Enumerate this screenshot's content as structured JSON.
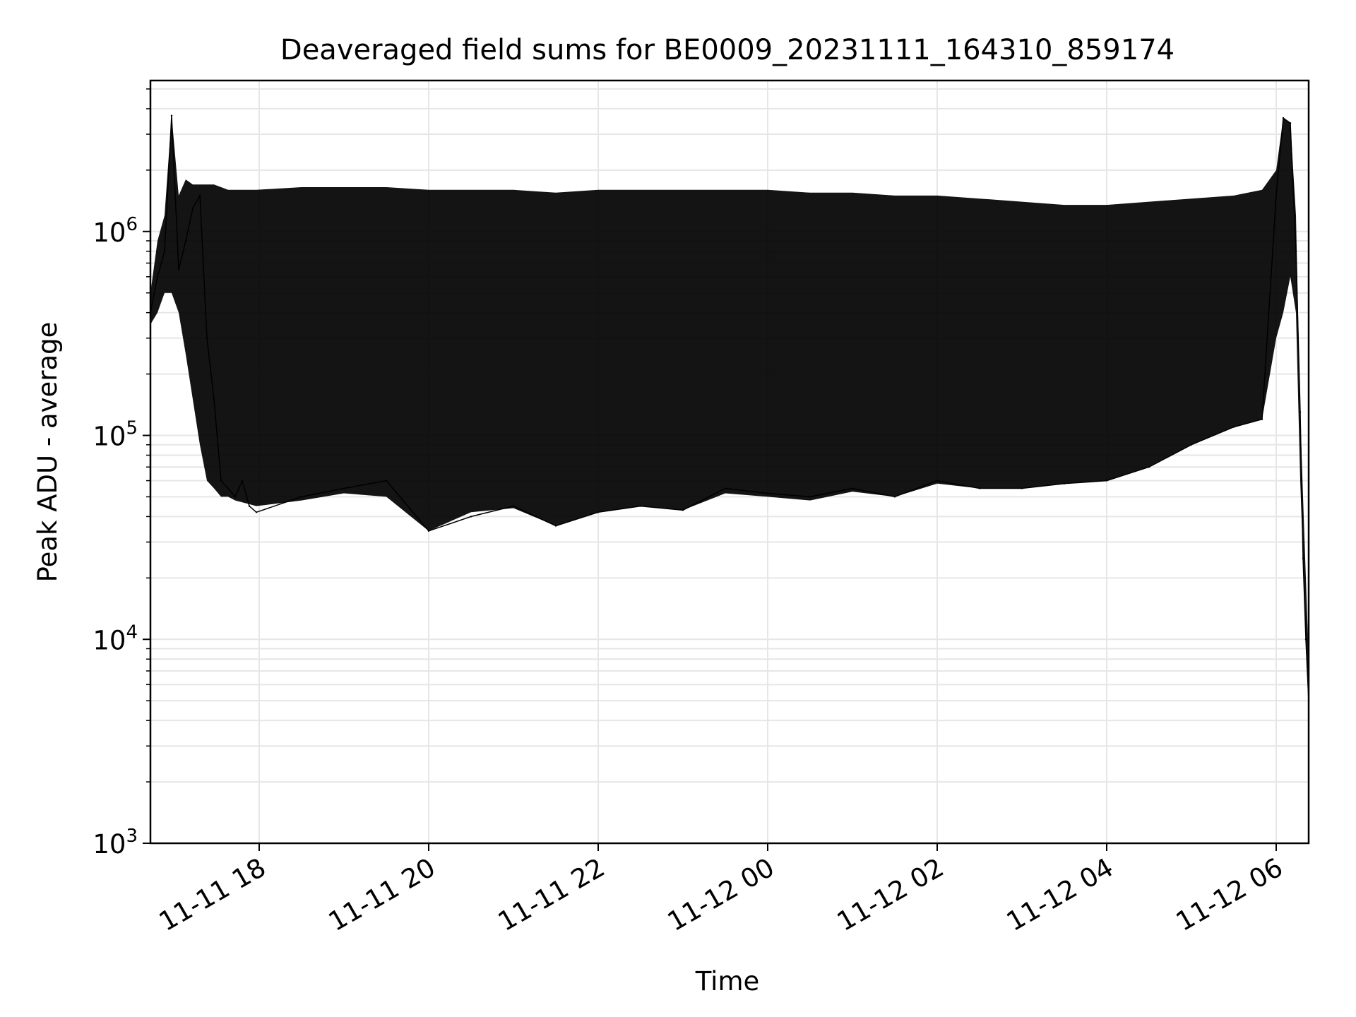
{
  "chart_data": {
    "type": "line",
    "title": "Deaveraged field sums for BE0009_20231111_164310_859174",
    "xlabel": "Time",
    "ylabel": "Peak ADU - average",
    "yscale": "log",
    "ylim": [
      1000,
      5500000
    ],
    "xlim": [
      "2023-11-11 16:43",
      "2023-11-12 06:23"
    ],
    "grid": true,
    "line_color": "#000000",
    "grid_color": "#e6e6e6",
    "x_ticks": [
      {
        "value": "2023-11-11 18:00",
        "label": "11-11 18"
      },
      {
        "value": "2023-11-11 20:00",
        "label": "11-11 20"
      },
      {
        "value": "2023-11-11 22:00",
        "label": "11-11 22"
      },
      {
        "value": "2023-11-12 00:00",
        "label": "11-12 00"
      },
      {
        "value": "2023-11-12 02:00",
        "label": "11-12 02"
      },
      {
        "value": "2023-11-12 04:00",
        "label": "11-12 04"
      },
      {
        "value": "2023-11-12 06:00",
        "label": "11-12 06"
      }
    ],
    "y_ticks": [
      {
        "value": 1000,
        "base": "10",
        "exp": "3"
      },
      {
        "value": 10000,
        "base": "10",
        "exp": "4"
      },
      {
        "value": 100000,
        "base": "10",
        "exp": "5"
      },
      {
        "value": 1000000,
        "base": "10",
        "exp": "6"
      }
    ],
    "series": [
      {
        "x": [
          "2023-11-11 16:43",
          "2023-11-11 16:48",
          "2023-11-11 16:53",
          "2023-11-11 16:58",
          "2023-11-11 17:03",
          "2023-11-11 17:08",
          "2023-11-11 17:13",
          "2023-11-11 17:18",
          "2023-11-11 17:23",
          "2023-11-11 17:28",
          "2023-11-11 17:33",
          "2023-11-11 17:38",
          "2023-11-11 17:43",
          "2023-11-11 17:48",
          "2023-11-11 17:53",
          "2023-11-11 17:58",
          "2023-11-11 18:30",
          "2023-11-11 19:00",
          "2023-11-11 19:30",
          "2023-11-11 20:00",
          "2023-11-11 20:30",
          "2023-11-11 21:00",
          "2023-11-11 21:30",
          "2023-11-11 22:00",
          "2023-11-11 22:30",
          "2023-11-11 23:00",
          "2023-11-11 23:30",
          "2023-11-12 00:00",
          "2023-11-12 00:30",
          "2023-11-12 01:00",
          "2023-11-12 01:30",
          "2023-11-12 02:00",
          "2023-11-12 02:30",
          "2023-11-12 03:00",
          "2023-11-12 03:30",
          "2023-11-12 04:00",
          "2023-11-12 04:30",
          "2023-11-12 05:00",
          "2023-11-12 05:30",
          "2023-11-12 05:50",
          "2023-11-12 06:00",
          "2023-11-12 06:05",
          "2023-11-12 06:10",
          "2023-11-12 06:14",
          "2023-11-12 06:17",
          "2023-11-12 06:19",
          "2023-11-12 06:21",
          "2023-11-12 06:23"
        ],
        "y": [
          400000,
          600000,
          800000,
          3700000,
          650000,
          900000,
          1300000,
          1500000,
          300000,
          150000,
          60000,
          55000,
          50000,
          60000,
          45000,
          42000,
          50000,
          55000,
          60000,
          34000,
          40000,
          45000,
          36000,
          42000,
          45000,
          43000,
          55000,
          52000,
          50000,
          55000,
          50000,
          60000,
          55000,
          55000,
          58000,
          60000,
          70000,
          90000,
          110000,
          120000,
          1500000,
          3600000,
          3400000,
          800000,
          130000,
          25000,
          10000,
          5000
        ],
        "upper": [
          500000,
          900000,
          1200000,
          3700000,
          1500000,
          1800000,
          1700000,
          1700000,
          1700000,
          1700000,
          1650000,
          1600000,
          1600000,
          1600000,
          1600000,
          1600000,
          1650000,
          1650000,
          1650000,
          1600000,
          1600000,
          1600000,
          1550000,
          1600000,
          1600000,
          1600000,
          1600000,
          1600000,
          1550000,
          1550000,
          1500000,
          1500000,
          1450000,
          1400000,
          1350000,
          1350000,
          1400000,
          1450000,
          1500000,
          1600000,
          2000000,
          3600000,
          3400000,
          1200000,
          130000,
          50000,
          20000,
          8000
        ],
        "lower": [
          350000,
          400000,
          500000,
          500000,
          400000,
          250000,
          150000,
          90000,
          60000,
          55000,
          50000,
          50000,
          48000,
          47000,
          46000,
          45000,
          48000,
          52000,
          50000,
          34000,
          42000,
          44000,
          36000,
          42000,
          45000,
          43000,
          52000,
          50000,
          48000,
          53000,
          50000,
          58000,
          55000,
          55000,
          58000,
          60000,
          70000,
          90000,
          110000,
          120000,
          300000,
          400000,
          600000,
          400000,
          60000,
          25000,
          10000,
          5000
        ]
      }
    ]
  }
}
